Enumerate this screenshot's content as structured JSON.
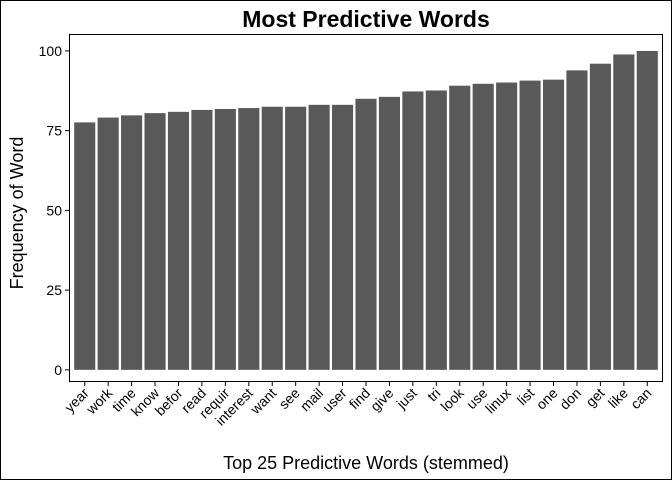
{
  "chart_data": {
    "type": "bar",
    "title": "Most Predictive Words",
    "xlabel": "Top 25 Predictive Words (stemmed)",
    "ylabel": "Frequency of Word",
    "categories": [
      "year",
      "work",
      "time",
      "know",
      "befor",
      "read",
      "requir",
      "interest",
      "want",
      "see",
      "mail",
      "user",
      "find",
      "give",
      "just",
      "tri",
      "look",
      "use",
      "linux",
      "list",
      "one",
      "don",
      "get",
      "like",
      "can"
    ],
    "values": [
      77.6,
      79.1,
      79.8,
      80.5,
      80.9,
      81.5,
      81.8,
      82.1,
      82.5,
      82.5,
      83.1,
      83.1,
      85.0,
      85.6,
      87.3,
      87.6,
      89.1,
      89.7,
      90.1,
      90.7,
      91.0,
      93.9,
      96.0,
      98.9,
      100.0
    ],
    "ylim": [
      -3.5,
      105
    ],
    "yticks": [
      0,
      25,
      50,
      75,
      100
    ],
    "grid": false,
    "bar_color": "#595959"
  }
}
